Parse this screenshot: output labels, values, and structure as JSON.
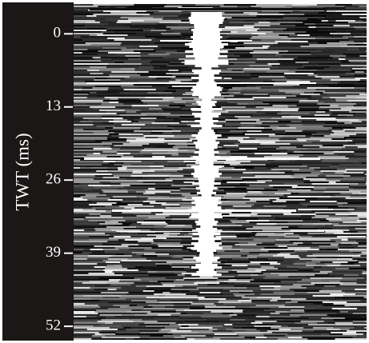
{
  "chart_data": {
    "type": "seismic-section",
    "ylabel": "TWT (ms)",
    "ylim": [
      -5.3,
      54.4
    ],
    "yticks": [
      0,
      13,
      26,
      39,
      52
    ]
  }
}
